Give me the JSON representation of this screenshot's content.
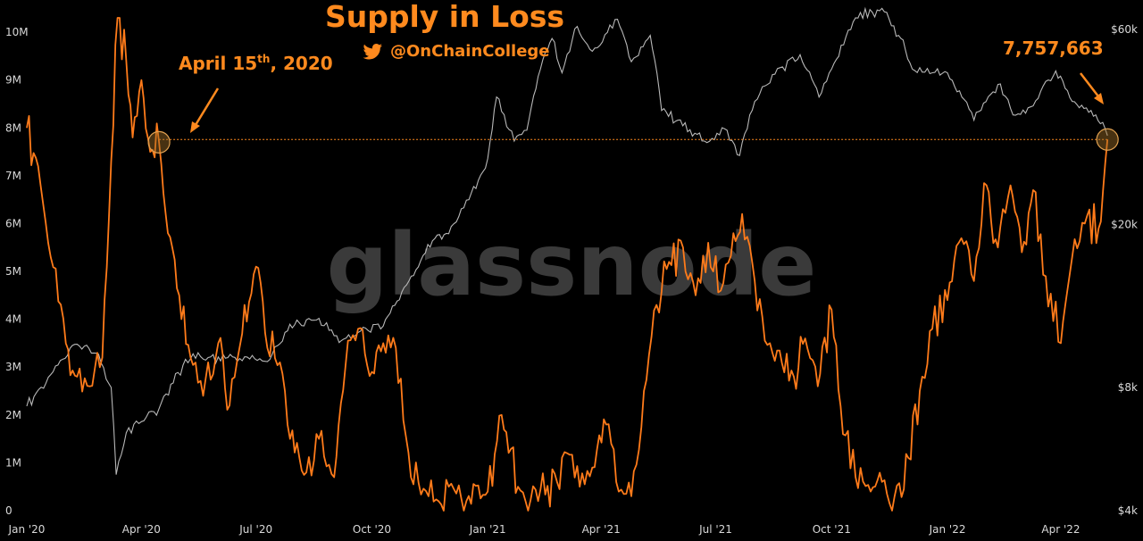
{
  "chart_data": {
    "type": "line",
    "title": "Supply in Loss",
    "handle": "@OnChainCollege",
    "watermark": "glassnode",
    "x_ticks": [
      "Jan '20",
      "Apr '20",
      "Jul '20",
      "Oct '20",
      "Jan '21",
      "Apr '21",
      "Jul '21",
      "Oct '21",
      "Jan '22",
      "Apr '22"
    ],
    "x_range": [
      "2020-01-01",
      "2022-05-10"
    ],
    "y_left": {
      "ticks": [
        "0",
        "1M",
        "2M",
        "3M",
        "4M",
        "5M",
        "6M",
        "7M",
        "8M",
        "9M",
        "10M"
      ],
      "range": [
        0,
        10300000
      ]
    },
    "y_right": {
      "scale": "log",
      "ticks": [
        "$4k",
        "$8k",
        "$20k",
        "$60k"
      ],
      "tick_values": [
        4000,
        8000,
        20000,
        60000
      ],
      "range": [
        4000,
        64000
      ]
    },
    "grid": false,
    "colors": {
      "supply": "#ff7b1a",
      "price": "#b8b8b8",
      "annotation": "#ff8a1e",
      "background": "#000000"
    },
    "series": [
      {
        "key": "supply",
        "axis": "left",
        "x": [
          "2020-01-01",
          "2020-01-10",
          "2020-01-20",
          "2020-02-01",
          "2020-02-10",
          "2020-02-20",
          "2020-03-01",
          "2020-03-08",
          "2020-03-13",
          "2020-03-20",
          "2020-03-25",
          "2020-04-01",
          "2020-04-08",
          "2020-04-15",
          "2020-04-22",
          "2020-05-01",
          "2020-05-10",
          "2020-05-20",
          "2020-06-01",
          "2020-06-10",
          "2020-06-20",
          "2020-07-01",
          "2020-07-10",
          "2020-07-20",
          "2020-07-28",
          "2020-08-10",
          "2020-08-20",
          "2020-09-01",
          "2020-09-10",
          "2020-09-20",
          "2020-10-01",
          "2020-10-10",
          "2020-10-20",
          "2020-11-01",
          "2020-11-15",
          "2020-12-01",
          "2020-12-15",
          "2021-01-01",
          "2021-01-12",
          "2021-01-25",
          "2021-02-10",
          "2021-02-25",
          "2021-03-05",
          "2021-03-15",
          "2021-03-25",
          "2021-04-05",
          "2021-04-15",
          "2021-04-25",
          "2021-05-05",
          "2021-05-15",
          "2021-05-25",
          "2021-06-05",
          "2021-06-15",
          "2021-06-25",
          "2021-07-05",
          "2021-07-15",
          "2021-07-22",
          "2021-08-01",
          "2021-08-15",
          "2021-09-01",
          "2021-09-10",
          "2021-09-20",
          "2021-10-01",
          "2021-10-10",
          "2021-10-20",
          "2021-11-01",
          "2021-11-10",
          "2021-11-20",
          "2021-12-01",
          "2021-12-10",
          "2021-12-20",
          "2022-01-01",
          "2022-01-10",
          "2022-01-22",
          "2022-02-01",
          "2022-02-10",
          "2022-02-20",
          "2022-03-01",
          "2022-03-10",
          "2022-03-20",
          "2022-04-01",
          "2022-04-10",
          "2022-04-20",
          "2022-05-01",
          "2022-05-08"
        ],
        "values": [
          8000000,
          7200000,
          5300000,
          3500000,
          2800000,
          2600000,
          3200000,
          7300000,
          10300000,
          9400000,
          7800000,
          9000000,
          7500000,
          7700000,
          5800000,
          4500000,
          3200000,
          2400000,
          3500000,
          2200000,
          3700000,
          5100000,
          3400000,
          3100000,
          1500000,
          800000,
          1500000,
          700000,
          3000000,
          3800000,
          2900000,
          3500000,
          3400000,
          700000,
          300000,
          500000,
          200000,
          400000,
          2000000,
          500000,
          200000,
          600000,
          1200000,
          500000,
          900000,
          1800000,
          400000,
          300000,
          2500000,
          4300000,
          5200000,
          5500000,
          4500000,
          5600000,
          4600000,
          5800000,
          6200000,
          4800000,
          3300000,
          2800000,
          3600000,
          2600000,
          4200000,
          1600000,
          700000,
          400000,
          600000,
          300000,
          1100000,
          2500000,
          3800000,
          4400000,
          5600000,
          4800000,
          6800000,
          5500000,
          6800000,
          5400000,
          6700000,
          4900000,
          3500000,
          5300000,
          6000000,
          5900000,
          7757663
        ]
      },
      {
        "key": "price",
        "axis": "right",
        "x": [
          "2020-01-01",
          "2020-01-20",
          "2020-02-10",
          "2020-02-25",
          "2020-03-08",
          "2020-03-12",
          "2020-03-20",
          "2020-04-01",
          "2020-04-15",
          "2020-04-30",
          "2020-05-10",
          "2020-06-01",
          "2020-06-20",
          "2020-07-10",
          "2020-07-26",
          "2020-08-10",
          "2020-08-20",
          "2020-09-05",
          "2020-09-20",
          "2020-10-10",
          "2020-10-21",
          "2020-11-05",
          "2020-11-20",
          "2020-12-01",
          "2020-12-17",
          "2021-01-01",
          "2021-01-08",
          "2021-01-22",
          "2021-02-01",
          "2021-02-10",
          "2021-02-21",
          "2021-03-01",
          "2021-03-13",
          "2021-03-25",
          "2021-04-14",
          "2021-04-25",
          "2021-05-10",
          "2021-05-19",
          "2021-06-01",
          "2021-06-22",
          "2021-07-10",
          "2021-07-20",
          "2021-08-01",
          "2021-08-15",
          "2021-09-06",
          "2021-09-21",
          "2021-10-01",
          "2021-10-20",
          "2021-11-10",
          "2021-11-25",
          "2021-12-04",
          "2021-12-20",
          "2022-01-01",
          "2022-01-22",
          "2022-02-10",
          "2022-02-24",
          "2022-03-10",
          "2022-03-28",
          "2022-04-10",
          "2022-04-25",
          "2022-05-08"
        ],
        "values": [
          7200,
          8600,
          10200,
          9700,
          8000,
          4900,
          6200,
          6600,
          7100,
          8700,
          9400,
          9500,
          9300,
          9250,
          11000,
          11700,
          11800,
          10300,
          10900,
          11300,
          13000,
          15500,
          18500,
          19000,
          23000,
          29000,
          41000,
          32000,
          34000,
          46000,
          57000,
          47000,
          61000,
          53000,
          63500,
          50000,
          58000,
          38000,
          36000,
          32000,
          34000,
          29500,
          40000,
          46500,
          52000,
          41000,
          48000,
          64000,
          67500,
          57000,
          48000,
          47000,
          47000,
          36000,
          44000,
          37000,
          39000,
          47500,
          40000,
          38000,
          33000
        ]
      }
    ],
    "reference_line": {
      "y_value": 7757663,
      "from": "2020-04-15",
      "to": "2022-05-08"
    },
    "annotations": [
      {
        "text_main": "April 15",
        "text_sup": "th",
        "text_tail": ", 2020",
        "date": "2020-04-15",
        "value": 7700000
      },
      {
        "text_main": "7,757,663",
        "text_sup": "",
        "text_tail": "",
        "date": "2022-05-08",
        "value": 7757663
      }
    ]
  }
}
